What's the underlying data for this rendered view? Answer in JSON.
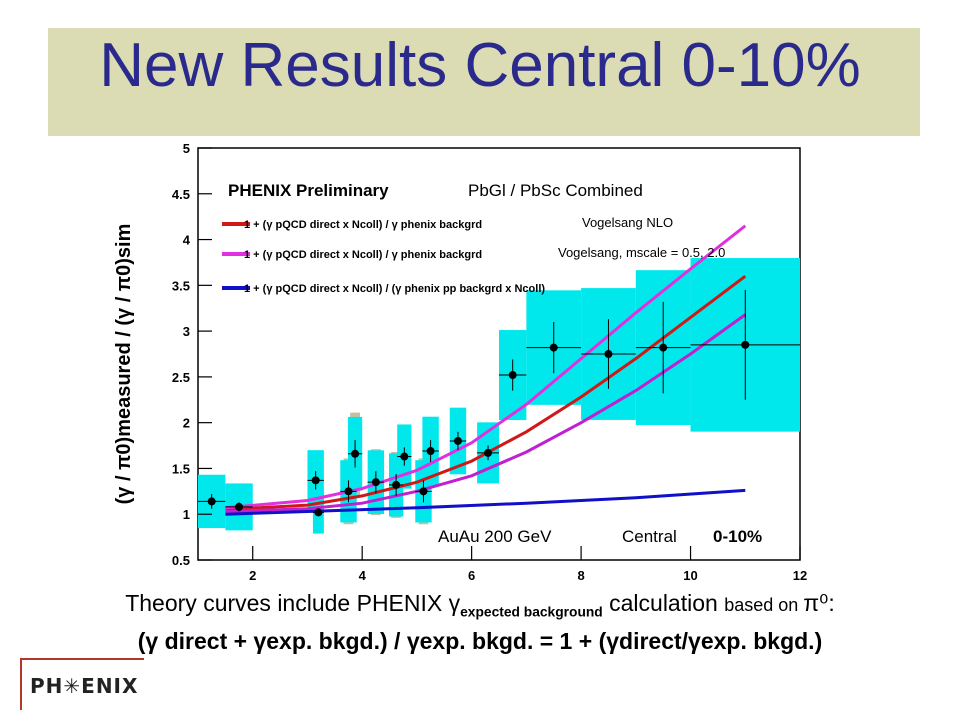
{
  "slide": {
    "title": "New Results Central 0-10%",
    "caption_line1_a": "Theory curves include PHENIX ",
    "caption_line1_gamma": "γ",
    "caption_line1_sub": "expected background",
    "caption_line1_b": " calculation ",
    "caption_line1_small": "based on ",
    "caption_line1_pi": "π⁰",
    "caption_line1_colon": ":",
    "caption_line2": "(γ direct + γexp. bkgd.) / γexp. bkgd.  =  1 + (γdirect/γexp. bkgd.)",
    "logo_text": "PH✳ENIX"
  },
  "chart_data": {
    "type": "scatter",
    "header_bold": "PHENIX Preliminary",
    "header_normal": "PbGl / PbSc Combined",
    "ylabel": "(γ / π0)measured / (γ / π0)sim",
    "xlim": [
      1,
      12
    ],
    "ylim": [
      0.5,
      5
    ],
    "x_ticks": [
      "2",
      "4",
      "6",
      "8",
      "10",
      "12"
    ],
    "y_ticks": [
      "0.5",
      "1",
      "1.5",
      "2",
      "2.5",
      "3",
      "3.5",
      "4",
      "4.5",
      "5"
    ],
    "annotation_left": "AuAu 200 GeV",
    "annotation_right_normal": "Central",
    "annotation_right_bold": "0-10%",
    "legend": [
      {
        "text": "1 + (γ pQCD direct x Ncoll) / γ phenix backgrd",
        "note": "Vogelsang NLO",
        "color": "#d01818"
      },
      {
        "text": "1 + (γ pQCD direct x Ncoll) / γ phenix backgrd",
        "note": "Vogelsang, mscale = 0.5, 2.0",
        "color": "#e030e0"
      },
      {
        "text": "1 + (γ pQCD direct x Ncoll) / (γ phenix pp backgrd x Ncoll)",
        "note": "",
        "color": "#1010c8"
      }
    ],
    "points": [
      {
        "x": 1.25,
        "y": 1.14,
        "xerr": 0.25,
        "yerr": 0.08
      },
      {
        "x": 1.75,
        "y": 1.08,
        "xerr": 0.25,
        "yerr": 0.05
      },
      {
        "x": 3.15,
        "y": 1.37,
        "xerr": 0.15,
        "yerr": 0.1
      },
      {
        "x": 3.2,
        "y": 1.02,
        "xerr": 0.1,
        "yerr": 0.03
      },
      {
        "x": 3.75,
        "y": 1.25,
        "xerr": 0.15,
        "yerr": 0.12
      },
      {
        "x": 3.87,
        "y": 1.66,
        "xerr": 0.13,
        "yerr": 0.15
      },
      {
        "x": 4.25,
        "y": 1.35,
        "xerr": 0.15,
        "yerr": 0.12
      },
      {
        "x": 4.62,
        "y": 1.32,
        "xerr": 0.13,
        "yerr": 0.12
      },
      {
        "x": 4.77,
        "y": 1.63,
        "xerr": 0.13,
        "yerr": 0.1
      },
      {
        "x": 5.12,
        "y": 1.25,
        "xerr": 0.15,
        "yerr": 0.12
      },
      {
        "x": 5.25,
        "y": 1.69,
        "xerr": 0.15,
        "yerr": 0.12
      },
      {
        "x": 5.75,
        "y": 1.8,
        "xerr": 0.15,
        "yerr": 0.1
      },
      {
        "x": 6.3,
        "y": 1.67,
        "xerr": 0.2,
        "yerr": 0.08
      },
      {
        "x": 6.75,
        "y": 2.52,
        "xerr": 0.25,
        "yerr": 0.17
      },
      {
        "x": 7.5,
        "y": 2.82,
        "xerr": 0.5,
        "yerr": 0.28
      },
      {
        "x": 8.5,
        "y": 2.75,
        "xerr": 0.5,
        "yerr": 0.38
      },
      {
        "x": 9.5,
        "y": 2.82,
        "xerr": 0.5,
        "yerr": 0.5
      },
      {
        "x": 11.0,
        "y": 2.85,
        "xerr": 1.0,
        "yerr": 0.6
      }
    ],
    "curves": [
      {
        "color": "#d01818",
        "x": [
          1.5,
          3,
          4,
          5,
          6,
          7,
          8,
          9,
          10,
          11
        ],
        "y": [
          1.05,
          1.1,
          1.2,
          1.35,
          1.58,
          1.9,
          2.28,
          2.7,
          3.15,
          3.6
        ]
      },
      {
        "color": "#e030e0",
        "x": [
          1.5,
          3,
          4,
          5,
          6,
          7,
          8,
          9,
          10,
          11
        ],
        "y": [
          1.07,
          1.15,
          1.28,
          1.48,
          1.78,
          2.2,
          2.7,
          3.2,
          3.68,
          4.15
        ]
      },
      {
        "color": "#c020d0",
        "x": [
          1.5,
          3,
          4,
          5,
          6,
          7,
          8,
          9,
          10,
          11
        ],
        "y": [
          1.03,
          1.06,
          1.12,
          1.25,
          1.42,
          1.68,
          2.0,
          2.35,
          2.75,
          3.18
        ]
      },
      {
        "color": "#1010c8",
        "x": [
          1.5,
          3,
          5,
          7,
          9,
          11
        ],
        "y": [
          1.0,
          1.03,
          1.07,
          1.12,
          1.18,
          1.26
        ]
      }
    ]
  }
}
